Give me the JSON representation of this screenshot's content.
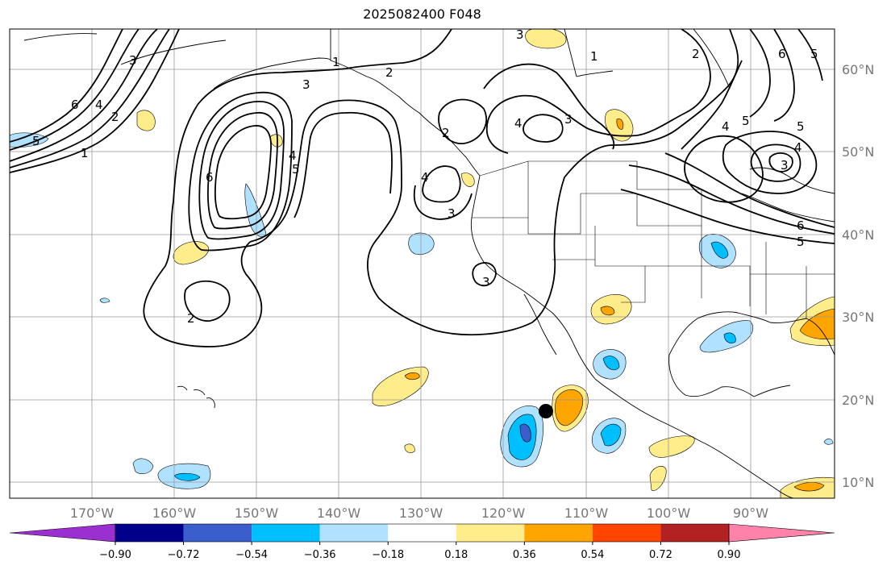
{
  "title": "2025082400 F048",
  "map": {
    "lat_labels": [
      "60°N",
      "50°N",
      "40°N",
      "30°N",
      "20°N",
      "10°N"
    ],
    "lon_labels": [
      "170°W",
      "160°W",
      "150°W",
      "140°W",
      "130°W",
      "120°W",
      "110°W",
      "100°W",
      "90°W"
    ],
    "contour_labels": [
      "1",
      "2",
      "3",
      "4",
      "5",
      "6"
    ],
    "colors": {
      "contour": "#000000",
      "grid": "#999999",
      "coast": "#000000",
      "marker": "#000000"
    }
  },
  "colorbar": {
    "labels": [
      "−0.90",
      "−0.72",
      "−0.54",
      "−0.36",
      "−0.18",
      "0.18",
      "0.36",
      "0.54",
      "0.72",
      "0.90"
    ],
    "colors": [
      "#9b30d0",
      "#00008b",
      "#3a5fcd",
      "#00bfff",
      "#b0e2ff",
      "#ffffff",
      "#ffec8b",
      "#ffa500",
      "#ff4500",
      "#b22222",
      "#ff82ab"
    ]
  }
}
